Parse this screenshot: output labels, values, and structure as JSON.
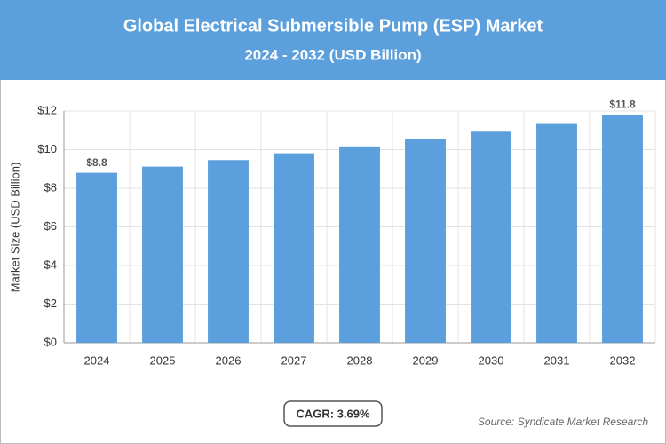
{
  "chart_data": {
    "type": "bar",
    "title": "Global Electrical Submersible Pump (ESP) Market",
    "subtitle": "2024 - 2032 (USD Billion)",
    "y_label": "Market Size (USD Billion)",
    "categories": [
      "2024",
      "2025",
      "2026",
      "2027",
      "2028",
      "2029",
      "2030",
      "2031",
      "2032"
    ],
    "values": [
      8.8,
      9.12,
      9.46,
      9.81,
      10.17,
      10.54,
      10.93,
      11.33,
      11.8
    ],
    "value_labels": [
      "$8.8",
      null,
      null,
      null,
      null,
      null,
      null,
      null,
      "$11.8"
    ],
    "color": "#5b9fdc",
    "ylim": [
      0,
      12
    ],
    "yticks": [
      {
        "value": 0,
        "label": "$0"
      },
      {
        "value": 2,
        "label": "$2"
      },
      {
        "value": 4,
        "label": "$4"
      },
      {
        "value": 6,
        "label": "$6"
      },
      {
        "value": 8,
        "label": "$8"
      },
      {
        "value": 10,
        "label": "$10"
      },
      {
        "value": 12,
        "label": "$12"
      }
    ],
    "grid": true,
    "cagr": "CAGR: 3.69%",
    "source": "Source: Syndicate Market Research"
  }
}
